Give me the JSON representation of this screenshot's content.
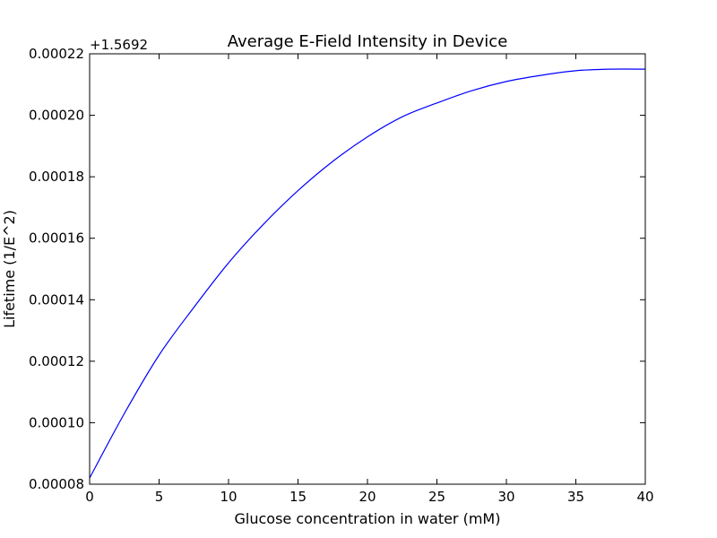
{
  "chart_data": {
    "type": "line",
    "title": "Average E-Field Intensity in Device",
    "xlabel": "Glucose concentration in water (mM)",
    "ylabel": "Lifetime (1/E^2)",
    "offset_label": "+1.5692",
    "xlim": [
      0,
      40
    ],
    "ylim": [
      8e-05,
      0.00022
    ],
    "x_ticks": [
      0,
      5,
      10,
      15,
      20,
      25,
      30,
      35,
      40
    ],
    "x_tick_labels": [
      "0",
      "5",
      "10",
      "15",
      "20",
      "25",
      "30",
      "35",
      "40"
    ],
    "y_ticks": [
      8e-05,
      0.0001,
      0.00012,
      0.00014,
      0.00016,
      0.00018,
      0.0002,
      0.00022
    ],
    "y_tick_labels": [
      "0.00008",
      "0.00010",
      "0.00012",
      "0.00014",
      "0.00016",
      "0.00018",
      "0.00020",
      "0.00022"
    ],
    "grid": false,
    "line_color": "#0000ff",
    "series": [
      {
        "x": [
          0,
          2.5,
          5,
          7.5,
          10,
          12.5,
          15,
          17.5,
          20,
          22.5,
          25,
          27.5,
          30,
          32.5,
          35,
          37.5,
          40
        ],
        "y": [
          8.2e-05,
          0.000103,
          0.000122,
          0.0001375,
          0.000152,
          0.0001645,
          0.0001755,
          0.000185,
          0.000193,
          0.0001995,
          0.000204,
          0.000208,
          0.000211,
          0.000213,
          0.0002145,
          0.000215,
          0.000215
        ]
      }
    ]
  }
}
